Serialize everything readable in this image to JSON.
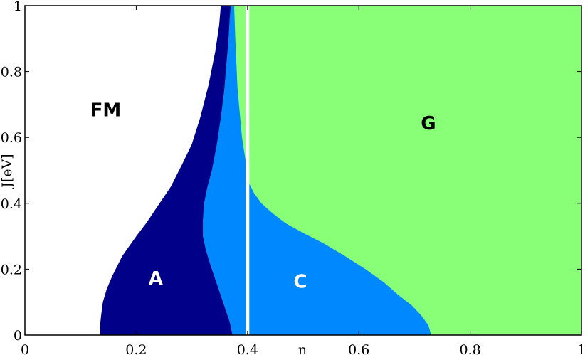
{
  "chart_data": {
    "type": "area",
    "title": "",
    "xlabel": "n",
    "ylabel": "J[eV]",
    "xlim": [
      0,
      1
    ],
    "ylim": [
      0,
      1
    ],
    "x_ticks": [
      "0",
      "0.2",
      "0.4",
      "0.6",
      "0.8",
      "1"
    ],
    "y_ticks": [
      "0",
      "0.2",
      "0.4",
      "0.6",
      "0.8",
      "1"
    ],
    "grid": false,
    "colors": {
      "FM": "#ffffff",
      "A": "#000088",
      "C": "#0088ff",
      "G": "#88ff77",
      "divider": "#ffffff"
    },
    "regions": [
      {
        "name": "FM",
        "label_pos": [
          0.145,
          0.68
        ],
        "label_color": "#000000"
      },
      {
        "name": "A",
        "label_pos": [
          0.235,
          0.17
        ],
        "label_color": "#ffffff",
        "left_boundary": [
          [
            0.135,
            0.0
          ],
          [
            0.135,
            0.03
          ],
          [
            0.137,
            0.06
          ],
          [
            0.14,
            0.1
          ],
          [
            0.147,
            0.14
          ],
          [
            0.157,
            0.18
          ],
          [
            0.175,
            0.24
          ],
          [
            0.2,
            0.3
          ],
          [
            0.218,
            0.34
          ],
          [
            0.238,
            0.39
          ],
          [
            0.262,
            0.45
          ],
          [
            0.283,
            0.52
          ],
          [
            0.3,
            0.58
          ],
          [
            0.315,
            0.66
          ],
          [
            0.33,
            0.76
          ],
          [
            0.342,
            0.86
          ],
          [
            0.349,
            0.94
          ],
          [
            0.352,
            1.0
          ]
        ],
        "right_boundary": [
          [
            0.373,
            0.0
          ],
          [
            0.368,
            0.04
          ],
          [
            0.36,
            0.08
          ],
          [
            0.35,
            0.13
          ],
          [
            0.34,
            0.18
          ],
          [
            0.332,
            0.22
          ],
          [
            0.325,
            0.26
          ],
          [
            0.32,
            0.3
          ],
          [
            0.32,
            0.35
          ],
          [
            0.322,
            0.4
          ],
          [
            0.328,
            0.45
          ],
          [
            0.336,
            0.5
          ],
          [
            0.345,
            0.58
          ],
          [
            0.352,
            0.66
          ],
          [
            0.358,
            0.74
          ],
          [
            0.362,
            0.82
          ],
          [
            0.366,
            0.9
          ],
          [
            0.368,
            0.96
          ],
          [
            0.37,
            1.0
          ]
        ]
      },
      {
        "name": "C",
        "label_pos": [
          0.495,
          0.16
        ],
        "label_color": "#ffffff",
        "right_boundary": [
          [
            0.73,
            0.0
          ],
          [
            0.725,
            0.03
          ],
          [
            0.712,
            0.06
          ],
          [
            0.695,
            0.09
          ],
          [
            0.672,
            0.12
          ],
          [
            0.645,
            0.16
          ],
          [
            0.612,
            0.2
          ],
          [
            0.575,
            0.24
          ],
          [
            0.535,
            0.28
          ],
          [
            0.5,
            0.31
          ],
          [
            0.468,
            0.34
          ],
          [
            0.445,
            0.37
          ],
          [
            0.425,
            0.4
          ],
          [
            0.412,
            0.43
          ],
          [
            0.403,
            0.46
          ],
          [
            0.401,
            0.48
          ]
        ],
        "top_right_edge": [
          [
            0.401,
            0.48
          ],
          [
            0.39,
            0.6
          ],
          [
            0.382,
            0.75
          ],
          [
            0.378,
            0.9
          ],
          [
            0.376,
            1.0
          ]
        ]
      },
      {
        "name": "G",
        "label_pos": [
          0.725,
          0.64
        ],
        "label_color": "#000000"
      }
    ],
    "divider_x": 0.4
  }
}
